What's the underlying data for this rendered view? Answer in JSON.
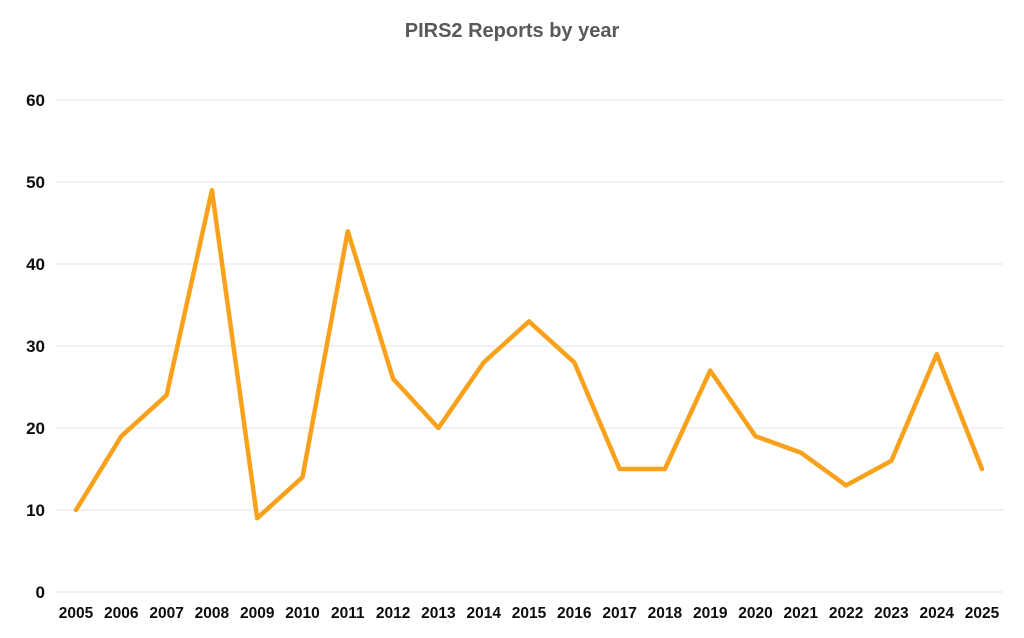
{
  "chart_data": {
    "type": "line",
    "title": "PIRS2 Reports by year",
    "categories": [
      "2005",
      "2006",
      "2007",
      "2008",
      "2009",
      "2010",
      "2011",
      "2012",
      "2013",
      "2014",
      "2015",
      "2016",
      "2017",
      "2018",
      "2019",
      "2020",
      "2021",
      "2022",
      "2023",
      "2024",
      "2025"
    ],
    "series": [
      {
        "name": "PIRS2 Reports",
        "values": [
          10,
          19,
          24,
          49,
          9,
          14,
          44,
          26,
          20,
          28,
          33,
          28,
          15,
          15,
          27,
          19,
          17,
          13,
          16,
          29,
          15
        ]
      }
    ],
    "xlabel": "",
    "ylabel": "",
    "ylim": [
      0,
      60
    ],
    "yticks": [
      0,
      10,
      20,
      30,
      40,
      50,
      60
    ],
    "grid": "horizontal",
    "legend": "none",
    "colors": {
      "line": "#F9A11B",
      "gridline": "#E3E3E3",
      "title": "#595959",
      "tick_label": "#0D0D0D",
      "background": "#FFFFFF"
    }
  }
}
